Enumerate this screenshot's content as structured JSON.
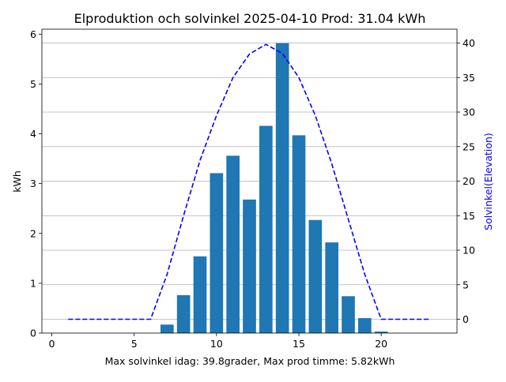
{
  "chart_data": {
    "type": "bar",
    "title": "Elproduktion och solvinkel 2025-04-10 Prod: 31.04 kWh",
    "xlabel": "Max solvinkel idag: 39.8grader, Max prod timme: 5.82kWh",
    "ylabel": "kWh",
    "y2label": "Solvinkel(Elevation)",
    "xlim": [
      -0.6,
      24.6
    ],
    "ylim": [
      0,
      6.1
    ],
    "y2lim": [
      -2,
      42
    ],
    "xticks": [
      0,
      5,
      10,
      15,
      20
    ],
    "yticks": [
      0,
      1,
      2,
      3,
      4,
      5,
      6
    ],
    "y2ticks": [
      0,
      5,
      10,
      15,
      20,
      25,
      30,
      35,
      40
    ],
    "grid": "horizontal, right axis",
    "bars": {
      "hours": [
        7,
        8,
        9,
        10,
        11,
        12,
        13,
        14,
        15,
        16,
        17,
        18,
        19,
        20
      ],
      "kwh": [
        0.17,
        0.76,
        1.54,
        3.21,
        3.56,
        2.68,
        4.16,
        5.82,
        3.97,
        2.27,
        1.82,
        0.74,
        0.3,
        0.03
      ],
      "color": "#1f77b4"
    },
    "elevation": {
      "hours": [
        1,
        2,
        3,
        4,
        5,
        6,
        7,
        8,
        9,
        10,
        11,
        12,
        13,
        14,
        15,
        16,
        17,
        18,
        19,
        20,
        21,
        22,
        23
      ],
      "degrees": [
        0,
        0,
        0,
        0,
        0,
        0,
        6.5,
        15,
        23,
        29.5,
        35,
        38.4,
        39.8,
        38.5,
        35,
        29.5,
        22.5,
        14.5,
        6.5,
        0,
        0,
        0,
        0
      ],
      "color": "#0000ff",
      "style": "dashed"
    }
  }
}
